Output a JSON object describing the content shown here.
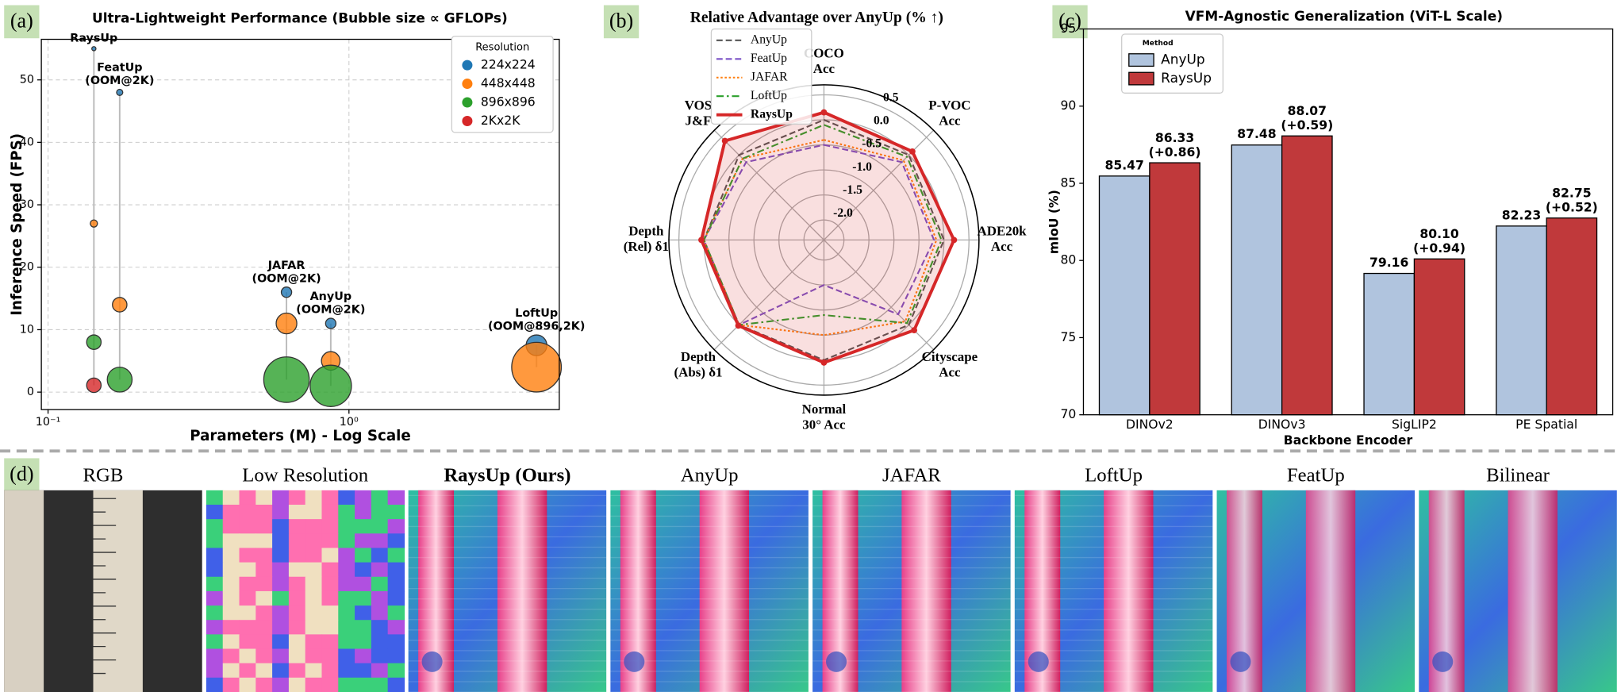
{
  "panel_labels": [
    "(a)",
    "(b)",
    "(c)",
    "(d)"
  ],
  "chart_data": [
    {
      "type": "scatter",
      "title": "Ultra-Lightweight Performance (Bubble size ∝ GFLOPs)",
      "x_label": "Parameters (M) - Log Scale",
      "y_label": "Inference Speed (FPS)",
      "xscale": "log",
      "xlim": [
        0.095,
        5.0
      ],
      "xticks": [
        {
          "value": 0.1,
          "label": "10⁻¹"
        },
        {
          "value": 1,
          "label": "10⁰"
        }
      ],
      "ylim": [
        -2.8,
        56.5
      ],
      "yticks": [
        0,
        10,
        20,
        30,
        40,
        50
      ],
      "grid": true,
      "legend_title": "Resolution",
      "legend": "upper right",
      "series": [
        {
          "name": "224x224",
          "color": "#1f77b4",
          "x": [
            0.142,
            0.173,
            0.62,
            0.87,
            4.2
          ],
          "values": [
            55,
            48,
            16,
            11,
            7.5
          ],
          "sizes": [
            4,
            9,
            25,
            25,
            100
          ]
        },
        {
          "name": "448x448",
          "color": "#ff7f0e",
          "x": [
            0.142,
            0.173,
            0.62,
            0.87,
            4.2
          ],
          "values": [
            27,
            14,
            11,
            5,
            4
          ],
          "sizes": [
            12,
            49,
            100,
            81,
            576
          ]
        },
        {
          "name": "896x896",
          "color": "#2ca02c",
          "x": [
            0.142,
            0.173,
            0.62,
            0.87
          ],
          "values": [
            8,
            2,
            2,
            1
          ],
          "sizes": [
            49,
            144,
            484,
            400
          ]
        },
        {
          "name": "2Kx2K",
          "color": "#d62728",
          "x": [
            0.142
          ],
          "values": [
            1.1
          ],
          "sizes": [
            49
          ]
        }
      ],
      "annotations": [
        "RaysUp",
        "FeatUp\n(OOM@2K)",
        "JAFAR\n(OOM@2K)",
        "AnyUp\n(OOM@2K)",
        "LoftUp\n(OOM@896,2K)"
      ]
    },
    {
      "type": "radar",
      "title": "Relative Advantage over AnyUp (% ↑)",
      "categories": [
        "COCO\nAcc",
        "P-VOC\nAcc",
        "ADE20k\nAcc",
        "Cityscape\nAcc",
        "Normal\n30° Acc",
        "Depth\n(Abs) δ1",
        "Depth\n(Rel) δ1",
        "VOS\nJ&F"
      ],
      "ylim": [
        -2.4,
        0.7
      ],
      "yticks": [
        {
          "value": -2,
          "label": "-2.0"
        },
        -1.5,
        {
          "value": -1,
          "label": "-1.0"
        },
        -0.5,
        {
          "value": 0,
          "label": "0.0"
        },
        0.5
      ],
      "legend": "upper left",
      "series": [
        {
          "name": "AnyUp",
          "color": "#555555",
          "linestyle": "dashed",
          "values": [
            0,
            0,
            0,
            0,
            0,
            0,
            0,
            0
          ]
        },
        {
          "name": "FeatUp",
          "color": "#7b52c6",
          "linestyle": "dashed",
          "values": [
            -0.5,
            -0.2,
            -0.2,
            -0.3,
            -1.5,
            0,
            0,
            -0.2
          ]
        },
        {
          "name": "JAFAR",
          "color": "#ff7f0e",
          "linestyle": "dotted",
          "values": [
            -0.4,
            -0.15,
            -0.15,
            -0.1,
            -0.5,
            0,
            0,
            -0.1
          ]
        },
        {
          "name": "LoftUp",
          "color": "#2ca02c",
          "linestyle": "dashdot",
          "values": [
            -0.1,
            -0.05,
            -0.05,
            -0.05,
            -0.9,
            0,
            0,
            -0.1
          ]
        },
        {
          "name": "RaysUp",
          "color": "#d62728",
          "linestyle": "solid",
          "filled": true,
          "values": [
            0.15,
            0.1,
            0.2,
            0.15,
            0.05,
            0.02,
            0.05,
            0.4
          ]
        }
      ]
    },
    {
      "type": "bar",
      "title": "VFM-Agnostic Generalization (ViT-L Scale)",
      "x_label": "Backbone Encoder",
      "y_label": "mIoU (%)",
      "categories": [
        "DINOv2",
        "DINOv3",
        "SigLIP2",
        "PE Spatial"
      ],
      "ylim": [
        70,
        95
      ],
      "yticks": [
        70,
        75,
        80,
        85,
        90,
        95
      ],
      "legend_title": "Method",
      "legend": "upper left",
      "series": [
        {
          "name": "AnyUp",
          "color": "#b0c4de",
          "label_color": "#000000",
          "values": [
            85.47,
            87.48,
            79.16,
            82.23
          ]
        },
        {
          "name": "RaysUp",
          "color": "#c0393b",
          "label_color": "#d62728",
          "values": [
            86.33,
            88.07,
            80.1,
            82.75
          ],
          "value_labels": [
            "86.33\n(+0.86)",
            "88.07\n(+0.59)",
            "80.10\n(+0.94)",
            "82.75\n(+0.52)"
          ]
        }
      ]
    }
  ],
  "gallery": {
    "captions": [
      "RGB",
      "Low Resolution",
      "RaysUp (Ours)",
      "AnyUp",
      "JAFAR",
      "LoftUp",
      "FeatUp",
      "Bilinear"
    ]
  }
}
